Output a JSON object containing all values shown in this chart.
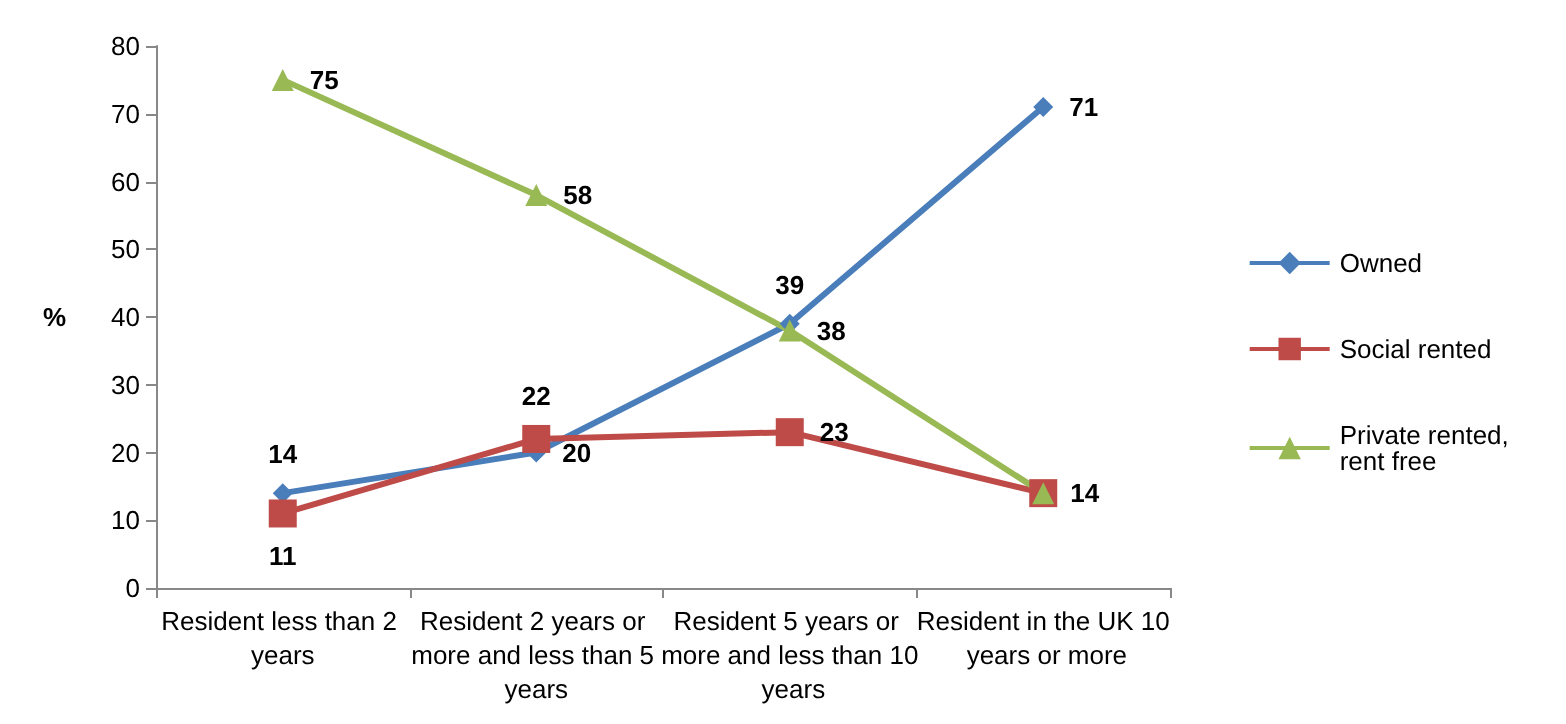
{
  "chart_data": {
    "type": "line",
    "ylabel": "%",
    "categories": [
      "Resident less than 2 years",
      "Resident 2 years or more and less than 5 years",
      "Resident 5 years or more and less than 10 years",
      "Resident in the UK 10 years or more"
    ],
    "series": [
      {
        "name": "Owned",
        "color": "#4a7ebb",
        "marker": "diamond",
        "values": [
          14,
          20,
          39,
          71
        ],
        "value_labels": [
          "14",
          "20",
          "39",
          "71"
        ]
      },
      {
        "name": "Social rented",
        "color": "#be4b48",
        "marker": "square",
        "values": [
          11,
          22,
          23,
          14
        ],
        "value_labels": [
          "11",
          "22",
          "23",
          null
        ]
      },
      {
        "name": "Private rented, rent free",
        "color": "#98b954",
        "marker": "triangle",
        "values": [
          75,
          58,
          38,
          14
        ],
        "value_labels": [
          "75",
          "58",
          "38",
          "14"
        ]
      }
    ],
    "ylim": [
      0,
      80
    ],
    "yticks": [
      0,
      10,
      20,
      30,
      40,
      50,
      60,
      70,
      80
    ],
    "grid": false,
    "legend": "right"
  }
}
